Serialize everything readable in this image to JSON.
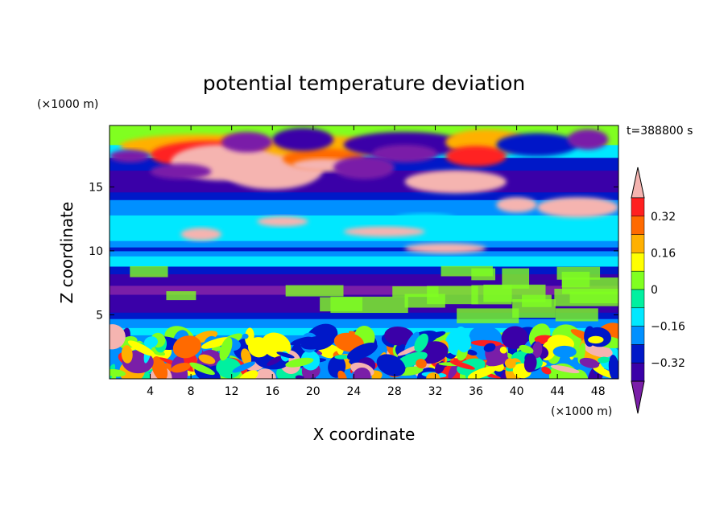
{
  "chart_data": {
    "type": "heatmap",
    "title": "potential temperature deviation",
    "time_label": "t=388800 s",
    "xlabel": "X coordinate",
    "ylabel": "Z coordinate",
    "x_units": "(×1000 m)",
    "y_units": "(×1000 m)",
    "xlim": [
      0,
      50
    ],
    "ylim": [
      0,
      19.8
    ],
    "x_ticks": [
      4,
      8,
      12,
      16,
      20,
      24,
      28,
      32,
      36,
      40,
      44,
      48
    ],
    "y_ticks": [
      5,
      10,
      15
    ],
    "colorbar": {
      "levels": [
        -0.48,
        -0.4,
        -0.32,
        -0.24,
        -0.16,
        -0.08,
        0,
        0.08,
        0.16,
        0.24,
        0.32,
        0.4
      ],
      "tick_labels": [
        "0.32",
        "0.16",
        "0",
        "−0.16",
        "−0.32"
      ],
      "tick_values": [
        0.32,
        0.16,
        0,
        -0.16,
        -0.32
      ],
      "colors": [
        "#7a1ea8",
        "#3a00a8",
        "#0018c8",
        "#0090ff",
        "#00e8ff",
        "#00f0a0",
        "#80ff20",
        "#ffff00",
        "#ffb000",
        "#ff6a00",
        "#ff2020",
        "#f5b4b0"
      ],
      "extend": "both"
    }
  }
}
